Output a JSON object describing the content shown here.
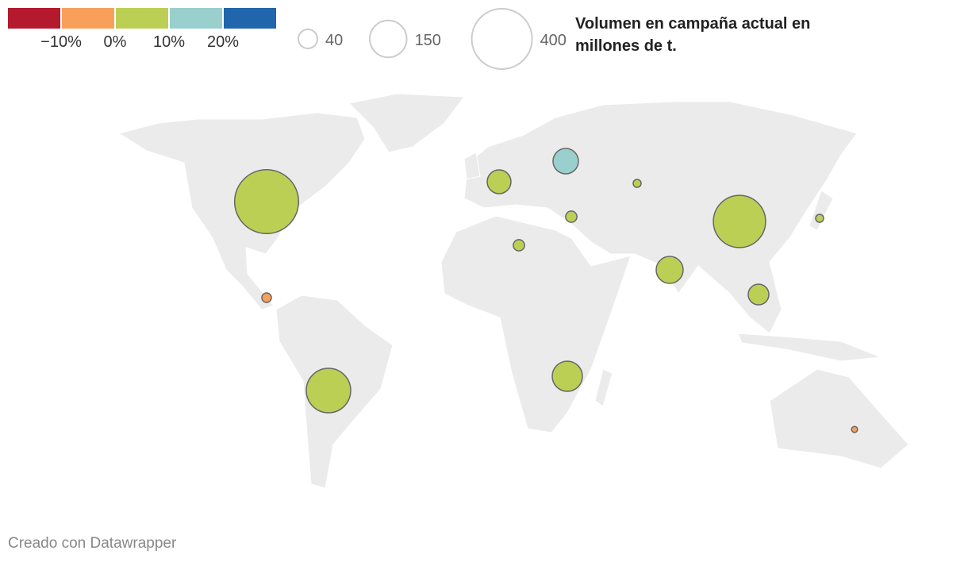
{
  "color_legend": {
    "colors": [
      "#b5192e",
      "#f8a05a",
      "#bccf55",
      "#99cfcc",
      "#2166ac"
    ],
    "labels": [
      "−10%",
      "0%",
      "10%",
      "20%"
    ]
  },
  "size_legend": {
    "values": [
      40,
      150,
      400
    ],
    "labels": [
      "40",
      "150",
      "400"
    ]
  },
  "title": "Volumen en campaña actual en millones de t.",
  "footer": "Creado con Datawrapper",
  "bubbles": [
    {
      "value": 450,
      "color": "#bccf55"
    },
    {
      "value": 300,
      "color": "#bccf55"
    },
    {
      "value": 217,
      "color": "#bccf55"
    },
    {
      "value": 100,
      "color": "#bccf55"
    },
    {
      "value": 80,
      "color": "#bccf55"
    },
    {
      "value": 71,
      "color": "#99cfcc"
    },
    {
      "value": 62,
      "color": "#bccf55"
    },
    {
      "value": 47,
      "color": "#bccf55"
    },
    {
      "value": 14,
      "color": "#bccf55"
    },
    {
      "value": 14,
      "color": "#bccf55"
    },
    {
      "value": 10,
      "color": "#f8a05a"
    },
    {
      "value": 7,
      "color": "#bccf55"
    },
    {
      "value": 7,
      "color": "#bccf55"
    },
    {
      "value": 4,
      "color": "#f8a05a"
    }
  ]
}
